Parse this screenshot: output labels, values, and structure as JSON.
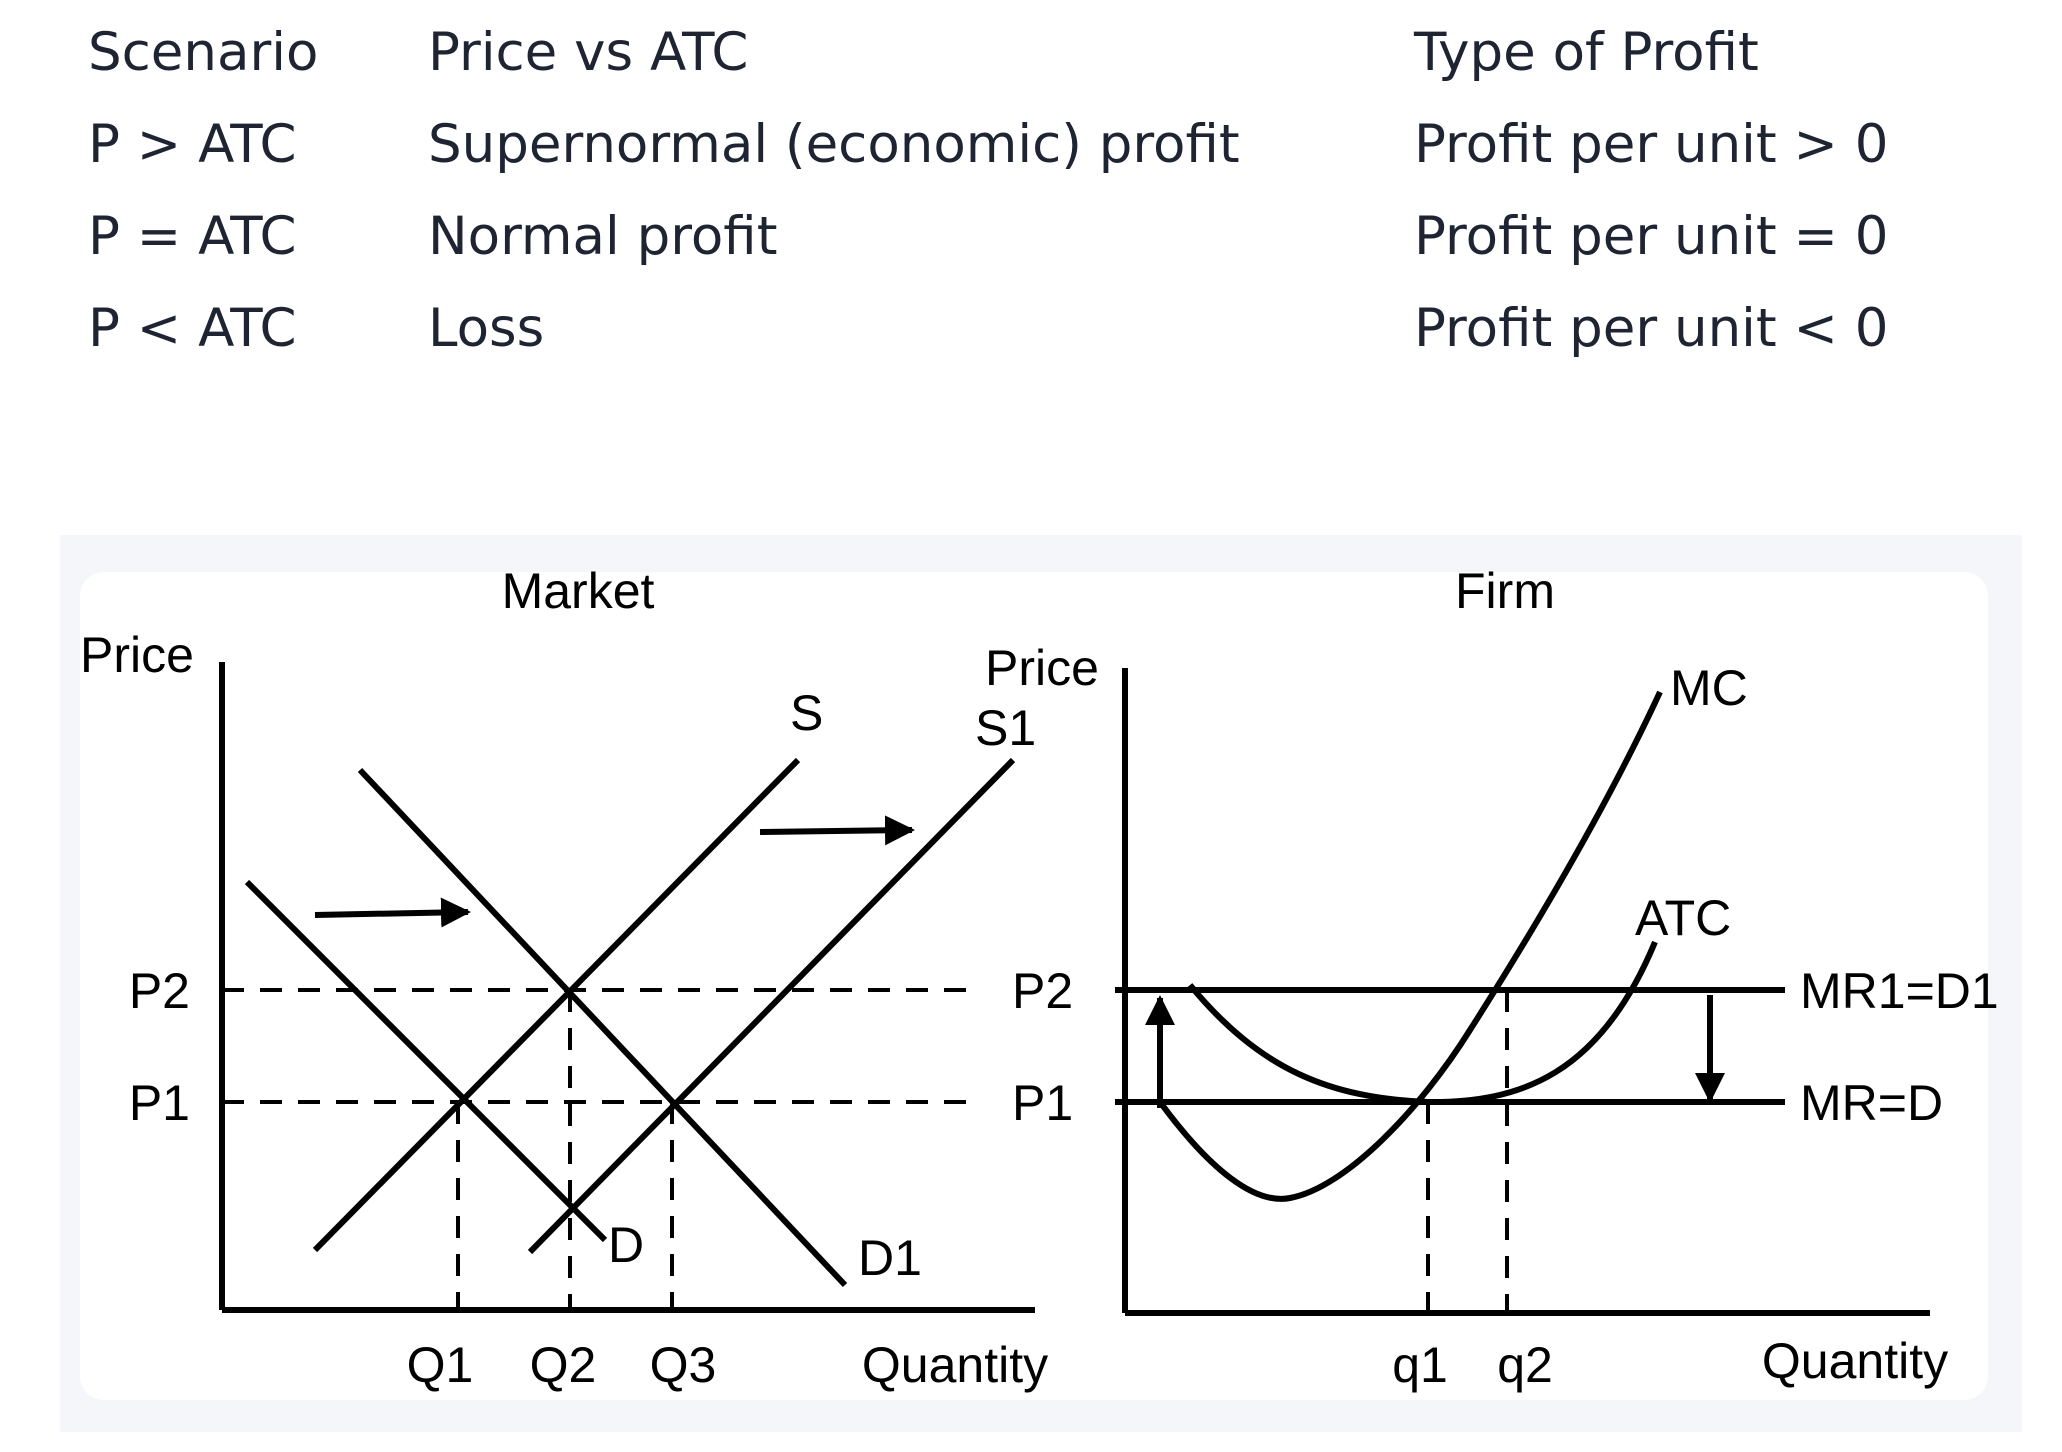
{
  "table": {
    "header": [
      "Scenario",
      "Price vs ATC",
      "Type of Profit"
    ],
    "rows": [
      [
        "P > ATC",
        "Supernormal (economic) profit",
        "Profit per unit > 0"
      ],
      [
        "P = ATC",
        "Normal profit",
        "Profit per unit = 0"
      ],
      [
        "P < ATC",
        "Loss",
        "Profit per unit < 0"
      ]
    ]
  },
  "market": {
    "title": "Market",
    "y_axis_label": "Price",
    "x_axis_label": "Quantity",
    "price_levels": [
      "P2",
      "P1"
    ],
    "right_price_levels": [
      "P2",
      "P1"
    ],
    "quantities": [
      "Q1",
      "Q2",
      "Q3"
    ],
    "curves": {
      "s": "S",
      "s1": "S1",
      "d": "D",
      "d1": "D1"
    }
  },
  "firm": {
    "title": "Firm",
    "y_axis_label": "Price",
    "x_axis_label": "Quantity",
    "quantities": [
      "q1",
      "q2"
    ],
    "curves": {
      "mc": "MC",
      "atc": "ATC",
      "mr1": "MR1=D1",
      "mr": "MR=D"
    }
  }
}
